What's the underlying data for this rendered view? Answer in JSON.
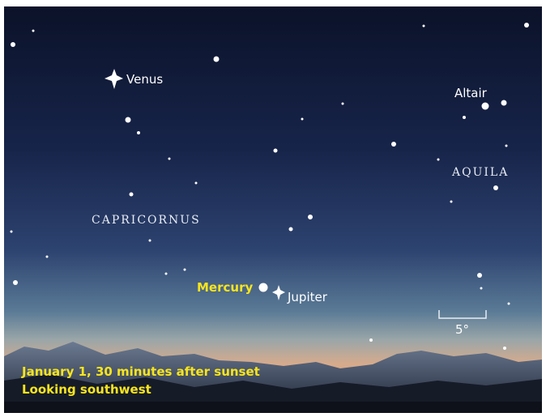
{
  "labels": {
    "venus": "Venus",
    "altair": "Altair",
    "aquila": "AQUILA",
    "capricornus": "CAPRICORNUS",
    "mercury": "Mercury",
    "jupiter": "Jupiter",
    "scale": "5°"
  },
  "caption": {
    "line1": "January 1, 30 minutes after sunset",
    "line2": "Looking southwest"
  }
}
